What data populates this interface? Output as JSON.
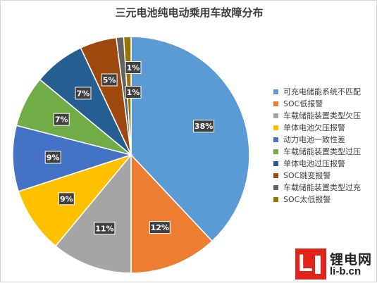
{
  "chart_data": {
    "type": "pie",
    "title": "三元电池纯电动乘用车故障分布",
    "legend_position": "right",
    "slices": [
      {
        "label": "可充电储能系统不匹配",
        "value": 38,
        "display": "38%",
        "color": "#5b9bd5"
      },
      {
        "label": "SOC低报警",
        "value": 12,
        "display": "12%",
        "color": "#ed7d31"
      },
      {
        "label": "车载储能装置类型欠压",
        "value": 11,
        "display": "11%",
        "color": "#a5a5a5"
      },
      {
        "label": "单体电池欠压报警",
        "value": 9,
        "display": "9%",
        "color": "#ffc000"
      },
      {
        "label": "动力电池一致性差",
        "value": 9,
        "display": "9%",
        "color": "#4472c4"
      },
      {
        "label": "车载储能装置类型过压",
        "value": 7,
        "display": "7%",
        "color": "#70ad47"
      },
      {
        "label": "单体电池过压报警",
        "value": 7,
        "display": "7%",
        "color": "#255e91"
      },
      {
        "label": "SOC跳变报警",
        "value": 5,
        "display": "5%",
        "color": "#9e480e"
      },
      {
        "label": "车载储能装置类型过充",
        "value": 1,
        "display": "1%",
        "color": "#636363"
      },
      {
        "label": "SOC太低报警",
        "value": 1,
        "display": "1%",
        "color": "#997300"
      }
    ]
  },
  "logo": {
    "initials": "L",
    "name_cn": "锂电网",
    "url": "li-b.cn"
  }
}
